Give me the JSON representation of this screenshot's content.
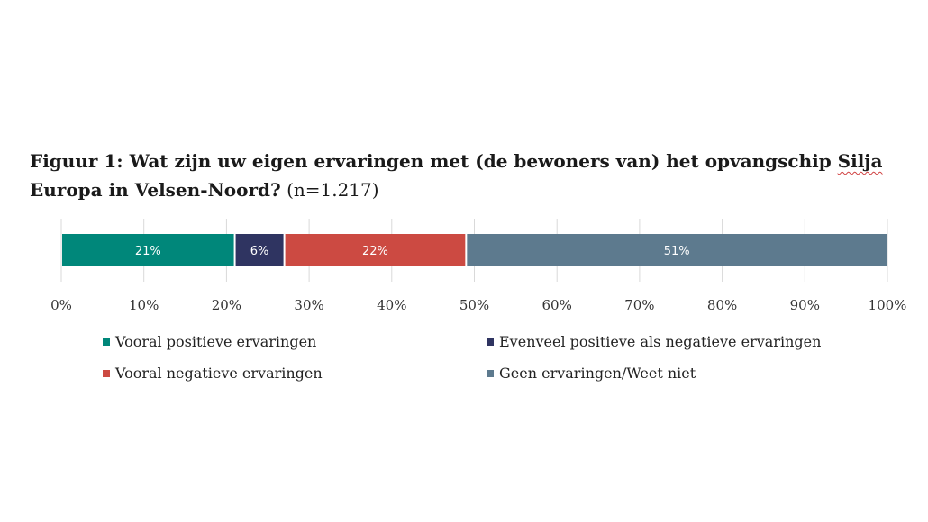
{
  "title": {
    "line1_main": "Figuur 1: Wat zijn uw eigen ervaringen met (de bewoners van) het opvangschip ",
    "line1_flagged": "Silja",
    "line2_main": "Europa in Velsen-Noord?",
    "line2_n": "(n=1.217)"
  },
  "chart_data": {
    "type": "bar",
    "orientation": "horizontal-stacked",
    "title": "Figuur 1: Wat zijn uw eigen ervaringen met (de bewoners van) het opvangschip Silja Europa in Velsen-Noord? (n=1.217)",
    "xlim": [
      0,
      100
    ],
    "x_ticks": [
      "0%",
      "10%",
      "20%",
      "30%",
      "40%",
      "50%",
      "60%",
      "70%",
      "80%",
      "90%",
      "100%"
    ],
    "series": [
      {
        "name": "Vooral positieve ervaringen",
        "value": 21,
        "label": "21%",
        "color": "#00877a"
      },
      {
        "name": "Evenveel positieve als negatieve ervaringen",
        "value": 6,
        "label": "6%",
        "color": "#2f3461"
      },
      {
        "name": "Vooral negatieve ervaringen",
        "value": 22,
        "label": "22%",
        "color": "#cc4a42"
      },
      {
        "name": "Geen ervaringen/Weet niet",
        "value": 51,
        "label": "51%",
        "color": "#5d7a8e"
      }
    ],
    "legend_position": "bottom"
  }
}
